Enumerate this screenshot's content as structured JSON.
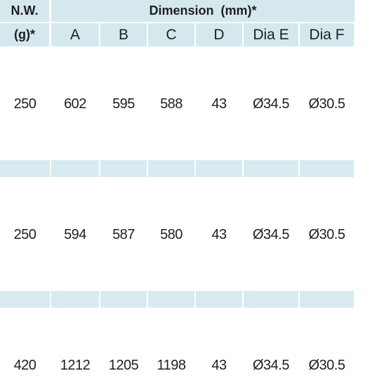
{
  "header": {
    "weight": "N.W.",
    "weight_unit": "(g)*",
    "dimension": "Dimension  (mm)*",
    "columns": [
      "A",
      "B",
      "C",
      "D",
      "Dia E",
      "Dia F"
    ]
  },
  "rows": [
    [
      "250",
      "602",
      "595",
      "588",
      "43",
      "Ø34.5",
      "Ø30.5"
    ],
    [
      "250",
      "594",
      "587",
      "580",
      "43",
      "Ø34.5",
      "Ø30.5"
    ],
    [
      "420",
      "1212",
      "1205",
      "1198",
      "43",
      "Ø34.5",
      "Ø30.5"
    ]
  ]
}
